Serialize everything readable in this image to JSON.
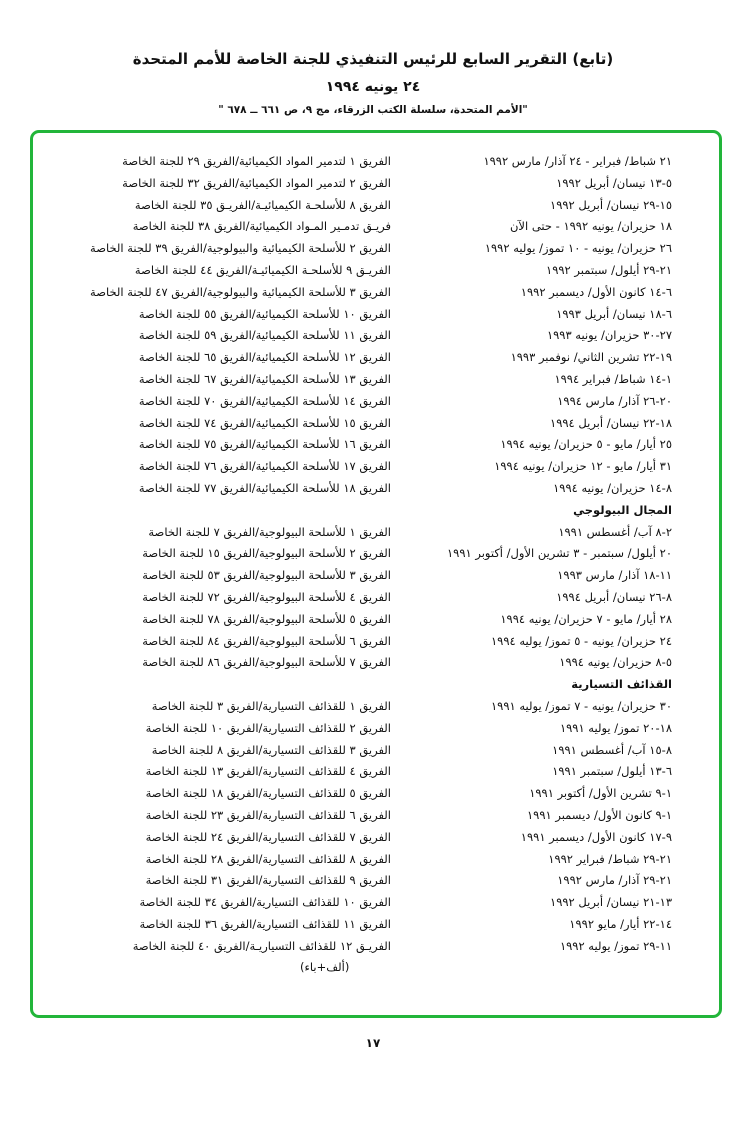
{
  "header": {
    "title": "(تابع) التقرير السابع للرئيس التنفيذي للجنة الخاصة للأمم المتحدة",
    "date": "٢٤ يونيه ١٩٩٤",
    "source": "\"الأمم المتحدة، سلسلة الكتب الزرقاء، مج ٩، ص ٦٦١ ــ ٦٧٨ \""
  },
  "accent_color": "#22b53a",
  "dates_column": [
    {
      "text": "٢١ شباط/ فبراير - ٢٤ آذار/ مارس ١٩٩٢"
    },
    {
      "text": "٥-١٣ نيسان/ أبريل ١٩٩٢"
    },
    {
      "text": "١٥-٢٩ نيسان/ أبريل ١٩٩٢"
    },
    {
      "text": "١٨ حزيران/ يونيه ١٩٩٢ - حتى الآن"
    },
    {
      "text": "٢٦ حزيران/ يونيه - ١٠ تموز/ يوليه ١٩٩٢"
    },
    {
      "text": "٢١-٢٩ أيلول/ سبتمبر ١٩٩٢"
    },
    {
      "text": "٦-١٤ كانون الأول/ ديسمبر ١٩٩٢"
    },
    {
      "text": "٦-١٨ نيسان/ أبريل ١٩٩٣"
    },
    {
      "text": "٢٧-٣٠ حزيران/ يونيه ١٩٩٣"
    },
    {
      "text": "١٩-٢٢ تشرين الثاني/ نوفمبر ١٩٩٣"
    },
    {
      "text": "١-١٤ شباط/ فبراير ١٩٩٤"
    },
    {
      "text": "٢٠-٢٦ آذار/ مارس ١٩٩٤"
    },
    {
      "text": "١٨-٢٢ نيسان/ أبريل ١٩٩٤"
    },
    {
      "text": "٢٥ أيار/ مايو - ٥ حزيران/ يونيه ١٩٩٤"
    },
    {
      "text": "٣١ أيار/ مايو - ١٢ حزيران/ يونيه ١٩٩٤"
    },
    {
      "text": "٨-١٤ حزيران/ يونيه ١٩٩٤"
    },
    {
      "text": "المجال البيولوجي",
      "heading": true
    },
    {
      "text": "٢-٨ آب/ أغسطس ١٩٩١"
    },
    {
      "text": "٢٠ أيلول/ سبتمبر - ٣ تشرين الأول/ أكتوبر  ١٩٩١"
    },
    {
      "text": "١١-١٨ آذار/ مارس ١٩٩٣"
    },
    {
      "text": "٨-٢٦ نيسان/ أبريل ١٩٩٤"
    },
    {
      "text": "٢٨ أيار/ مايو - ٧ حزيران/ يونيه ١٩٩٤"
    },
    {
      "text": "٢٤ حزيران/ يونيه - ٥ تموز/ يوليه ١٩٩٤"
    },
    {
      "text": "٥-٨ حزيران/ يونيه ١٩٩٤"
    },
    {
      "text": "القذائف التسيارية",
      "heading": true
    },
    {
      "text": "٣٠ حزيران/ يونيه - ٧ تموز/ يوليه ١٩٩١"
    },
    {
      "text": "١٨-٢٠ تموز/ يوليه ١٩٩١"
    },
    {
      "text": "٨-١٥ آب/ أغسطس ١٩٩١"
    },
    {
      "text": "٦-١٣ أيلول/ سبتمبر ١٩٩١"
    },
    {
      "text": "١-٩ تشرين الأول/ أكتوبر ١٩٩١"
    },
    {
      "text": "١-٩ كانون الأول/ ديسمبر ١٩٩١"
    },
    {
      "text": "٩-١٧ كانون الأول/ ديسمبر ١٩٩١"
    },
    {
      "text": "٢١-٢٩ شباط/ فبراير ١٩٩٢"
    },
    {
      "text": "٢١-٢٩ آذار/ مارس ١٩٩٢"
    },
    {
      "text": "١٣-٢١ نيسان/ أبريل ١٩٩٢"
    },
    {
      "text": "١٤-٢٢ أيار/ مايو ١٩٩٢"
    },
    {
      "text": "١١-٢٩ تموز/ يوليه ١٩٩٢"
    }
  ],
  "teams_column": [
    {
      "text": "الفريق ١ لتدمير المواد الكيميائية/الفريق ٢٩ للجنة الخاصة"
    },
    {
      "text": "الفريق ٢ لتدمير المواد الكيميائية/الفريق ٣٢ للجنة الخاصة"
    },
    {
      "text": "الفريق ٨ للأسلحـة الكيميائيـة/الفريـق ٣٥ للجنة الخاصة"
    },
    {
      "text": "فريـق تدمـير المـواد الكيميائية/الفريق ٣٨ للجنة الخاصة"
    },
    {
      "text": "الفريق ٢ للأسلحة الكيميائية والبيولوجية/الفريق ٣٩ للجنة الخاصة"
    },
    {
      "text": "الفريـق ٩ للأسلحـة الكيميائيـة/الفريق ٤٤ للجنة الخاصة"
    },
    {
      "text": "الفريق ٣ للأسلحة الكيميائية والبيولوجية/الفريق ٤٧ للجنة الخاصة"
    },
    {
      "text": "الفريق ١٠ للأسلحة الكيميائية/الفريق ٥٥ للجنة الخاصة"
    },
    {
      "text": "الفريق ١١ للأسلحة الكيميائية/الفريق ٥٩ للجنة الخاصة"
    },
    {
      "text": "الفريق ١٢ للأسلحة الكيميائية/الفريق ٦٥ للجنة الخاصة"
    },
    {
      "text": "الفريق ١٣ للأسلحة الكيميائية/الفريق ٦٧ للجنة الخاصة"
    },
    {
      "text": "الفريق ١٤ للأسلحة الكيميائية/الفريق ٧٠ للجنة الخاصة"
    },
    {
      "text": "الفريق ١٥ للأسلحة الكيميائية/الفريق ٧٤ للجنة الخاصة"
    },
    {
      "text": "الفريق ١٦ للأسلحة الكيميائية/الفريق ٧٥ للجنة الخاصة"
    },
    {
      "text": "الفريق ١٧ للأسلحة الكيميائية/الفريق ٧٦ للجنة الخاصة"
    },
    {
      "text": "الفريق ١٨ للأسلحة الكيميائية/الفريق ٧٧ للجنة الخاصة"
    },
    {
      "text": ""
    },
    {
      "text": "الفريق ١ للأسلحة البيولوجية/الفريق ٧ للجنة الخاصة"
    },
    {
      "text": "الفريق ٢ للأسلحة البيولوجية/الفريق ١٥ للجنة الخاصة"
    },
    {
      "text": "الفريق ٣ للأسلحة البيولوجية/الفريق ٥٣ للجنة الخاصة"
    },
    {
      "text": "الفريق ٤ للأسلحة البيولوجية/الفريق ٧٢ للجنة الخاصة"
    },
    {
      "text": "الفريق ٥ للأسلحة البيولوجية/الفريق ٧٨ للجنة الخاصة"
    },
    {
      "text": "الفريق ٦ للأسلحة البيولوجية/الفريق ٨٤ للجنة الخاصة"
    },
    {
      "text": "الفريق ٧ للأسلحة البيولوجية/الفريق ٨٦ للجنة الخاصة"
    },
    {
      "text": ""
    },
    {
      "text": "الفريق ١ للقذائف التسيارية/الفريق ٣ للجنة الخاصة"
    },
    {
      "text": "الفريق ٢ للقذائف التسيارية/الفريق ١٠ للجنة الخاصة"
    },
    {
      "text": "الفريق ٣ للقذائف التسيارية/الفريق ٨ للجنة الخاصة"
    },
    {
      "text": "الفريق ٤ للقذائف التسيارية/الفريق ١٣ للجنة الخاصة"
    },
    {
      "text": "الفريق ٥ للقذائف التسيارية/الفريق ١٨ للجنة الخاصة"
    },
    {
      "text": "الفريق ٦ للقذائف التسيارية/الفريق ٢٣ للجنة الخاصة"
    },
    {
      "text": "الفريق ٧ للقذائف التسيارية/الفريق ٢٤ للجنة الخاصة"
    },
    {
      "text": "الفريق ٨ للقذائف التسيارية/الفريق ٢٨ للجنة الخاصة"
    },
    {
      "text": "الفريق ٩ للقذائف التسيارية/الفريق ٣١ للجنة الخاصة"
    },
    {
      "text": "الفريق ١٠ للقذائف التسيارية/الفريق ٣٤ للجنة الخاصة"
    },
    {
      "text": "الفريق ١١ للقذائف التسيارية/الفريق ٣٦ للجنة الخاصة"
    },
    {
      "text": "الفريـق ١٢ للقذائف التسياريـة/الفريق ٤٠ للجنة الخاصة"
    },
    {
      "text": "(ألف+باء)",
      "continuation": true
    }
  ],
  "page_number": "١٧"
}
